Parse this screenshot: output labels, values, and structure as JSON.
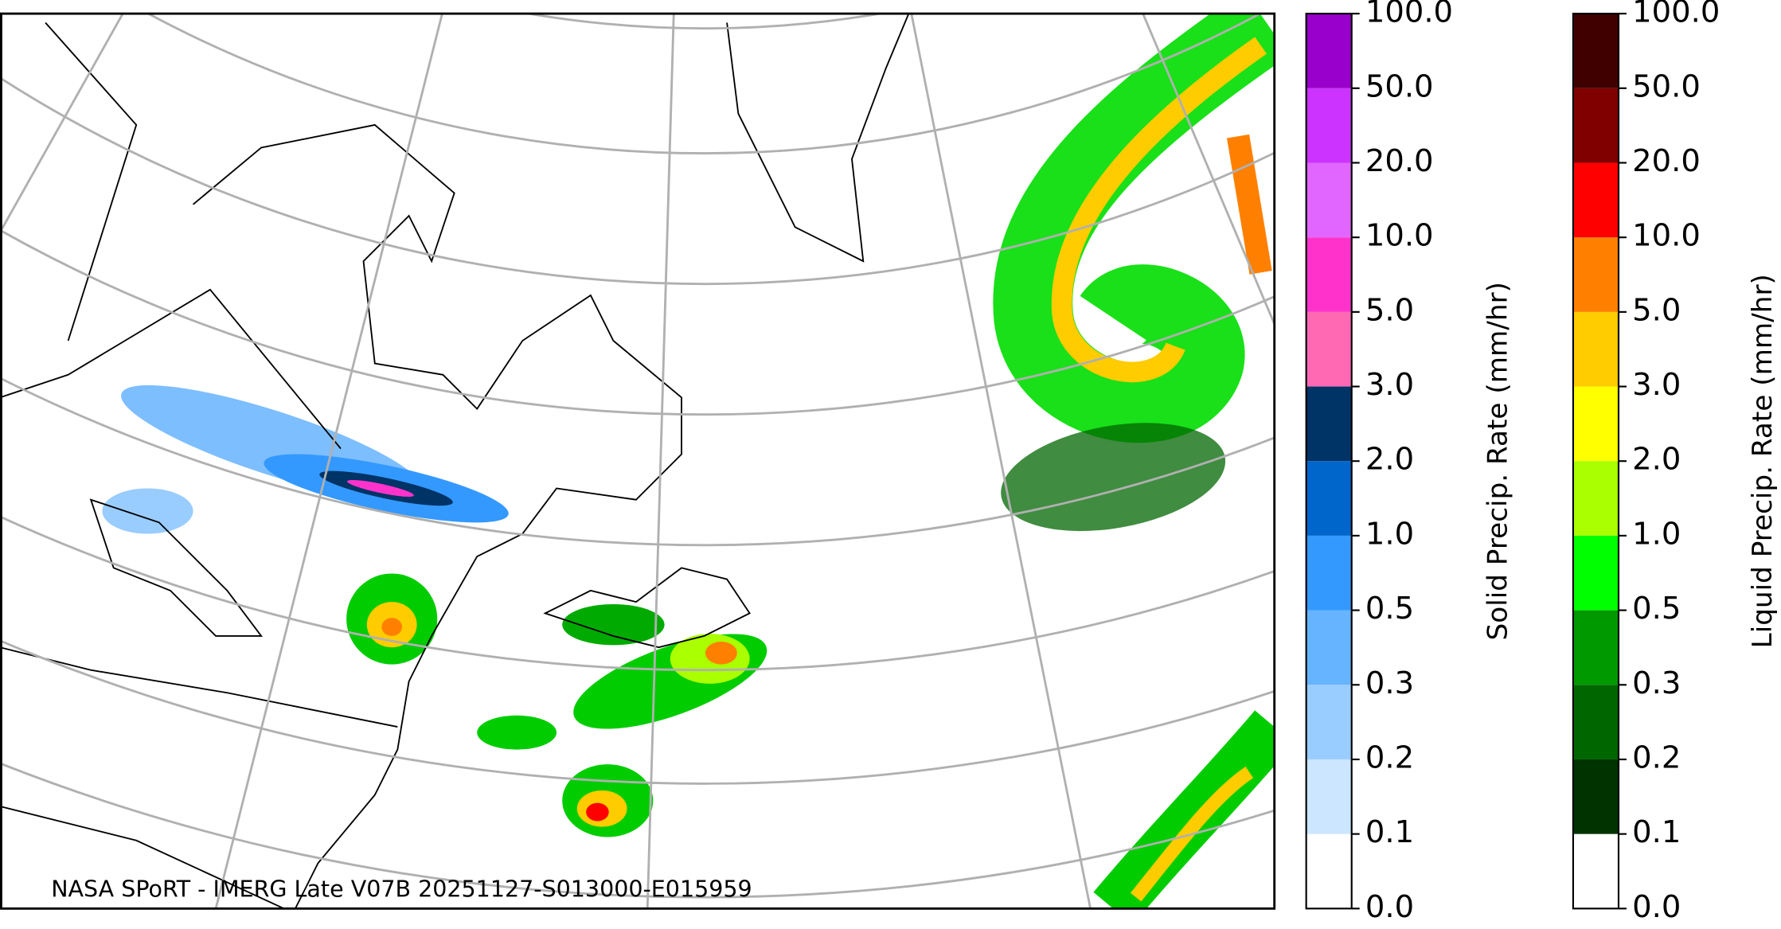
{
  "footer": "NASA SPoRT - IMERG Late V07B 20251127-S013000-E015959",
  "colorbars": [
    {
      "label": "Solid Precip. Rate (mm/hr)",
      "colors": [
        "#ffffff",
        "#cce6ff",
        "#99ccff",
        "#66b3ff",
        "#3399ff",
        "#0066cc",
        "#003366",
        "#ff69b4",
        "#ff33cc",
        "#e066ff",
        "#cc33ff",
        "#9900cc"
      ],
      "ticks": [
        {
          "value": 0,
          "label": "0.0"
        },
        {
          "value": 0.1,
          "label": "0.1"
        },
        {
          "value": 0.2,
          "label": "0.2"
        },
        {
          "value": 0.3,
          "label": "0.3"
        },
        {
          "value": 0.5,
          "label": "0.5"
        },
        {
          "value": 1,
          "label": "1.0"
        },
        {
          "value": 2,
          "label": "2.0"
        },
        {
          "value": 3,
          "label": "3.0"
        },
        {
          "value": 5,
          "label": "5.0"
        },
        {
          "value": 10,
          "label": "10.0"
        },
        {
          "value": 20,
          "label": "20.0"
        },
        {
          "value": 50,
          "label": "50.0"
        },
        {
          "value": 100,
          "label": "100.0"
        }
      ]
    },
    {
      "label": "Liquid Precip. Rate (mm/hr)",
      "colors": [
        "#ffffff",
        "#003300",
        "#006600",
        "#009900",
        "#00ff00",
        "#aaff00",
        "#ffff00",
        "#ffcc00",
        "#ff8000",
        "#ff0000",
        "#800000",
        "#400000"
      ],
      "ticks": [
        {
          "value": 0,
          "label": "0.0"
        },
        {
          "value": 0.1,
          "label": "0.1"
        },
        {
          "value": 0.2,
          "label": "0.2"
        },
        {
          "value": 0.3,
          "label": "0.3"
        },
        {
          "value": 0.5,
          "label": "0.5"
        },
        {
          "value": 1,
          "label": "1.0"
        },
        {
          "value": 2,
          "label": "2.0"
        },
        {
          "value": 3,
          "label": "3.0"
        },
        {
          "value": 5,
          "label": "5.0"
        },
        {
          "value": 10,
          "label": "10.0"
        },
        {
          "value": 20,
          "label": "20.0"
        },
        {
          "value": 50,
          "label": "50.0"
        },
        {
          "value": 100,
          "label": "100.0"
        }
      ]
    }
  ]
}
